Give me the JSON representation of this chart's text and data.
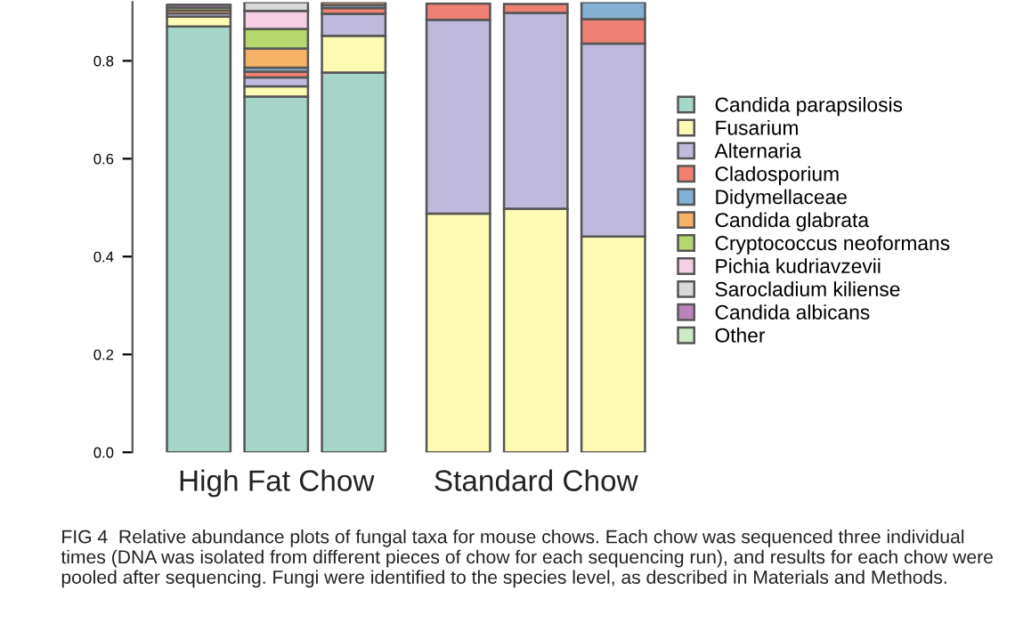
{
  "chart_data": {
    "type": "bar",
    "stacked": true,
    "categories": [
      null,
      null,
      null,
      null,
      null,
      null
    ],
    "ylim": [
      0,
      0.92
    ],
    "yticks": [
      {
        "value": 0,
        "label": "0.0"
      },
      0.2,
      0.4,
      0.6,
      0.8
    ],
    "grid": false,
    "legend": "right",
    "annotations": [
      "High Fat Chow",
      "Standard Chow",
      "FIG 4  Relative abundance plots of fungal taxa for mouse chows. Each chow was sequenced three individual times (DNA was isolated from different pieces of chow for each sequencing run), and results for each chow were pooled after sequencing. Fungi were identified to the species level, as described in Materials and Methods."
    ],
    "series": [
      {
        "name": "Candida parapsilosis",
        "color": "#a6d6ca",
        "values": [
          0.87,
          0.727,
          0.776,
          null,
          null,
          null
        ]
      },
      {
        "name": "Fusarium",
        "color": "#fdfbb3",
        "values": [
          0.02,
          0.021,
          0.075,
          0.488,
          0.498,
          0.441
        ]
      },
      {
        "name": "Alternaria",
        "color": "#bfbadb",
        "values": [
          0.007,
          0.018,
          0.045,
          0.396,
          0.4,
          0.394
        ]
      },
      {
        "name": "Cladosporium",
        "color": "#f08074",
        "values": [
          null,
          0.012,
          0.012,
          0.033,
          0.018,
          0.05
        ]
      },
      {
        "name": "Didymellaceae",
        "color": "#84b0d3",
        "values": [
          null,
          0.008,
          0.006,
          null,
          null,
          0.035
        ]
      },
      {
        "name": "Candida glabrata",
        "color": "#f5b266",
        "values": [
          0.006,
          0.039,
          0.006,
          null,
          null,
          null
        ]
      },
      {
        "name": "Cryptococcus neoformans",
        "color": "#b6d66e",
        "values": [
          0.006,
          0.04,
          null,
          null,
          null,
          null
        ]
      },
      {
        "name": "Pichia kudriavzevii",
        "color": "#f5cfe3",
        "values": [
          null,
          0.037,
          null,
          null,
          null,
          null
        ]
      },
      {
        "name": "Sarocladium kiliense",
        "color": "#d9d9d9",
        "values": [
          null,
          0.018,
          null,
          null,
          null,
          null
        ]
      },
      {
        "name": "Candida albicans",
        "color": "#b984b9",
        "values": [
          0.006,
          null,
          null,
          null,
          null,
          null
        ]
      },
      {
        "name": "Other",
        "color": "#cde9c6",
        "values": [
          null,
          null,
          null,
          null,
          null,
          null
        ]
      }
    ]
  }
}
